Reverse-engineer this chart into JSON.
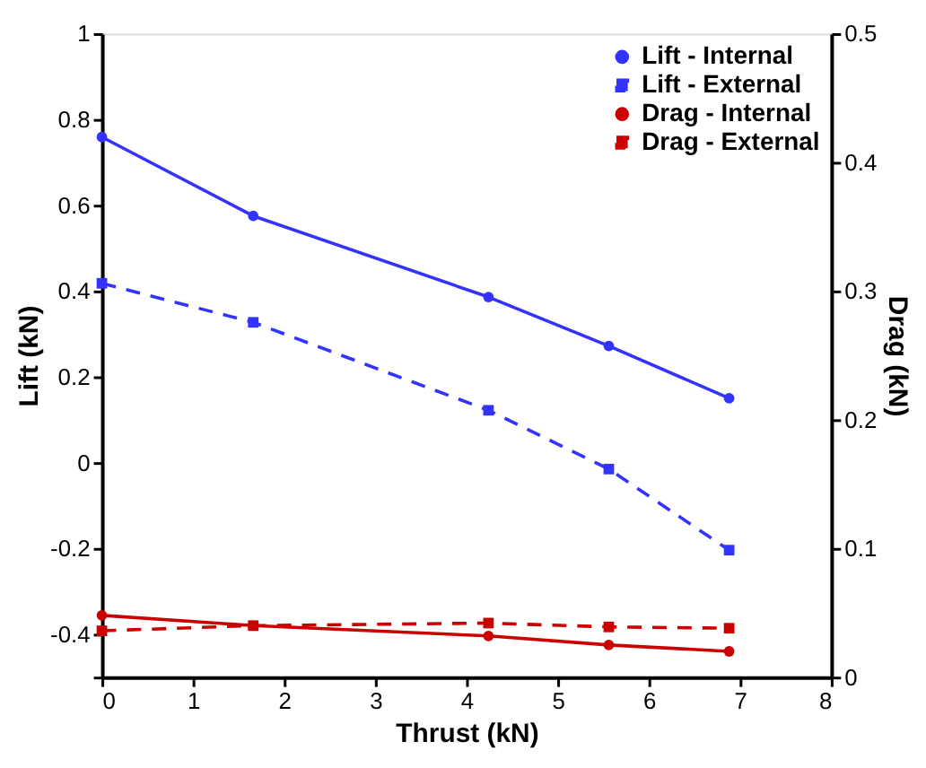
{
  "chart_data": {
    "type": "line",
    "xlabel": "Thrust (kN)",
    "ylabel": "Lift (kN)",
    "y2label": "Drag (kN)",
    "x": [
      0,
      1.66,
      4.24,
      5.56,
      6.88
    ],
    "xlim": [
      0,
      8
    ],
    "xticks": [
      0,
      1,
      2,
      3,
      4,
      5,
      6,
      7,
      8
    ],
    "ylim": [
      -0.5,
      1
    ],
    "yticks": [
      {
        "value": -0.5,
        "label": null
      },
      -0.4,
      -0.2,
      0,
      0.2,
      0.4,
      0.6,
      0.8,
      1
    ],
    "y2lim": [
      0,
      0.5
    ],
    "y2ticks": [
      0,
      0.1,
      0.2,
      0.3,
      0.4,
      0.5
    ],
    "legend": "top right",
    "grid": false,
    "series": [
      {
        "name": "Lift - Internal",
        "color": "#3333ff",
        "marker": "circle",
        "line_style": "solid",
        "axis": "y",
        "values": [
          0.759,
          0.575,
          0.386,
          0.272,
          0.15
        ]
      },
      {
        "name": "Lift - External",
        "color": "#3333ff",
        "marker": "square",
        "line_style": "dashed",
        "axis": "y",
        "values": [
          0.418,
          0.327,
          0.122,
          -0.015,
          -0.204
        ]
      },
      {
        "name": "Drag - Internal",
        "color": "#cc0000",
        "marker": "circle",
        "line_style": "solid",
        "axis": "y2",
        "values": [
          0.048,
          0.04,
          0.032,
          0.025,
          0.02
        ]
      },
      {
        "name": "Drag - External",
        "color": "#cc0000",
        "marker": "square",
        "line_style": "dashed",
        "axis": "y2",
        "values": [
          0.036,
          0.04,
          0.042,
          0.039,
          0.038
        ]
      }
    ]
  }
}
